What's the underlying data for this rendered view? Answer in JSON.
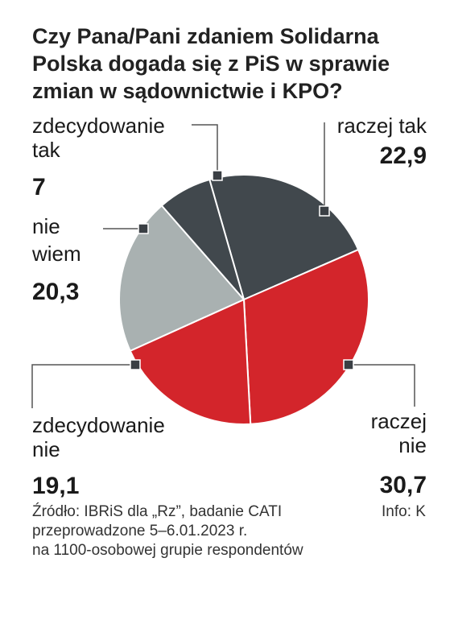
{
  "title_lines": [
    "Czy Pana/Pani zdaniem Solidarna",
    "Polska dogada się z PiS w sprawie",
    "zmian w sądownictwie i KPO?"
  ],
  "colors": {
    "dark": "#41484d",
    "gray": "#a9b1b1",
    "red": "#d3252b",
    "line": "#555555"
  },
  "chart_data": {
    "type": "pie",
    "slices": [
      {
        "label_lines": [
          "raczej tak"
        ],
        "value": 22.9,
        "value_label": "22,9",
        "color": "#41484d"
      },
      {
        "label_lines": [
          "raczej",
          "nie"
        ],
        "value": 30.7,
        "value_label": "30,7",
        "color": "#d3252b"
      },
      {
        "label_lines": [
          "zdecydowanie",
          "nie"
        ],
        "value": 19.1,
        "value_label": "19,1",
        "color": "#d3252b"
      },
      {
        "label_lines": [
          "nie",
          "wiem"
        ],
        "value": 20.3,
        "value_label": "20,3",
        "color": "#a9b1b1"
      },
      {
        "label_lines": [
          "zdecydowanie",
          "tak"
        ],
        "value": 7,
        "value_label": "7",
        "color": "#41484d"
      }
    ]
  },
  "source_lines": [
    "Źródło: IBRiS dla „Rz”, badanie CATI",
    "przeprowadzone 5–6.01.2023 r.",
    "na 1100-osobowej grupie respondentów"
  ],
  "credit": "Info: K"
}
